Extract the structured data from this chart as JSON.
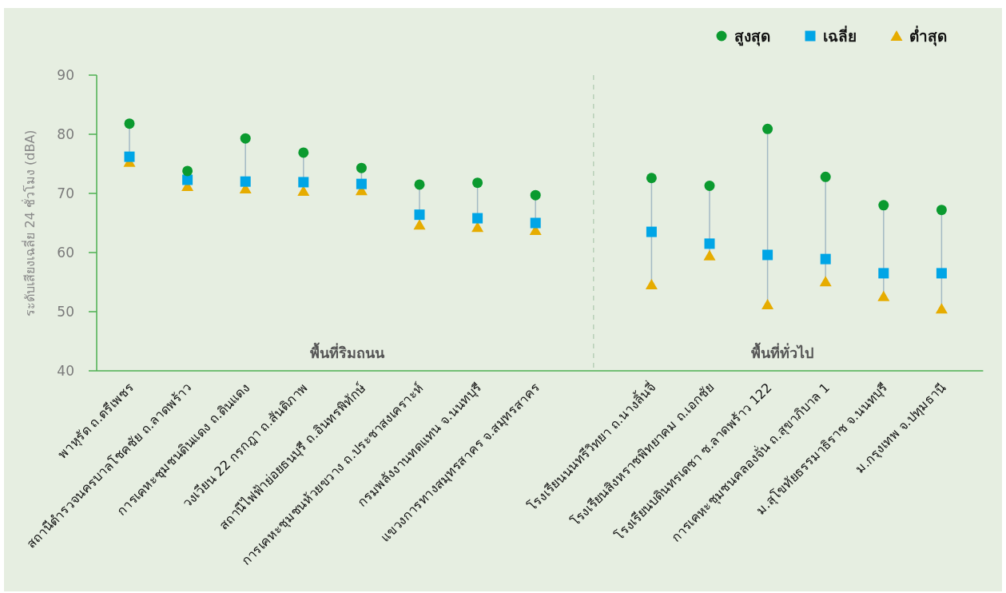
{
  "chart_data": {
    "type": "scatter",
    "ylabel": "ระดับเสียงเฉลี่ย 24 ชั่วโมง (dBA)",
    "categories": [
      "พาหุรัด ถ.ตรีเพชร",
      "สถานีตำรวจนครบาลโชคชัย ถ.ลาดพร้าว",
      "การเคหะชุมชนดินแดง ถ.ดินแดง",
      "วงเวียน 22 กรกฎา ถ.สันติภาพ",
      "สถานีไฟฟ้าย่อยธนบุรี ถ.อินทรพิทักษ์",
      "การเคหะชุมชนห้วยขวาง ถ.ประชาสงเคราะห์",
      "กรมพลังงานทดแทน จ.นนทบุรี",
      "แขวงการทางสมุทรสาคร จ.สมุทรสาคร",
      null,
      "โรงเรียนนนทรีวิทยา ถ.นางลิ้นจี่",
      "โรงเรียนสิงหราชพิทยาคม ถ.เอกชัย",
      "โรงเรียนบดินทรเดชา ซ.ลาดพร้าว 122",
      "การเคหะชุมชนคลองจั่น ถ.สุขาภิบาล 1",
      "ม.สุโขทัยธรรมาธิราช จ.นนทบุรี",
      "ม.กรุงเทพ จ.ปทุมธานี"
    ],
    "series": [
      {
        "name": "สูงสุด",
        "color": "#0b9a2f",
        "marker": "circle",
        "values": [
          81.8,
          73.8,
          79.3,
          76.9,
          74.3,
          71.5,
          71.8,
          69.7,
          null,
          72.6,
          71.3,
          80.9,
          72.8,
          68.0,
          67.2
        ]
      },
      {
        "name": "เฉลี่ย",
        "color": "#00a5e6",
        "marker": "square",
        "values": [
          76.2,
          72.3,
          72.0,
          71.9,
          71.6,
          66.4,
          65.8,
          65.0,
          null,
          63.5,
          61.5,
          59.6,
          58.9,
          56.5,
          56.5
        ]
      },
      {
        "name": "ต่ำสุด",
        "color": "#e6ac00",
        "marker": "triangle",
        "values": [
          75.3,
          71.2,
          70.8,
          70.4,
          70.5,
          64.7,
          64.3,
          63.8,
          null,
          54.6,
          59.5,
          51.2,
          55.1,
          52.6,
          50.5
        ]
      }
    ],
    "ylim": [
      40,
      90
    ],
    "yticks": [
      40,
      50,
      60,
      70,
      80,
      90
    ],
    "annotations": [
      "พื้นที่ริมถนน",
      "พื้นที่ทั่วไป"
    ],
    "legend": "top right"
  }
}
